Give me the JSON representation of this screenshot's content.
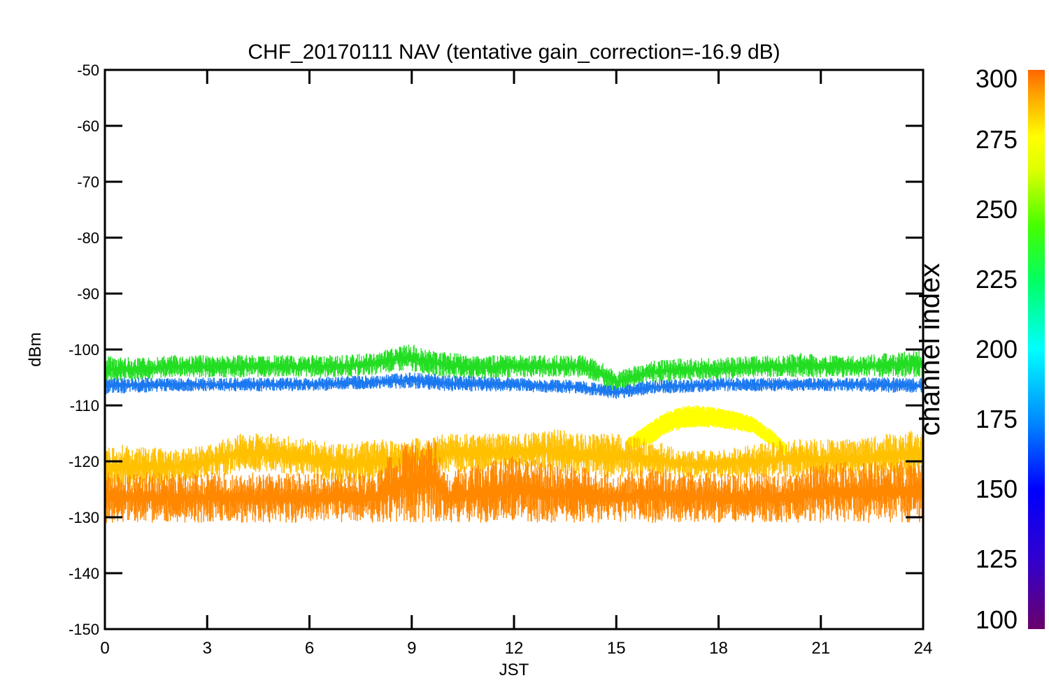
{
  "chart_data": {
    "type": "line",
    "title": "CHF_20170111 NAV (tentative gain_correction=-16.9 dB)",
    "xlabel": "JST",
    "ylabel": "dBm",
    "xlim": [
      0,
      24
    ],
    "ylim": [
      -150,
      -50
    ],
    "xticks": [
      "0",
      "3",
      "6",
      "9",
      "12",
      "15",
      "18",
      "21",
      "24"
    ],
    "yticks": [
      "-50",
      "-60",
      "-70",
      "-80",
      "-90",
      "-100",
      "-110",
      "-120",
      "-130",
      "-140",
      "-150"
    ],
    "grid": false,
    "colorbar": {
      "label": "channel index",
      "range": [
        100,
        300
      ],
      "ticks": [
        "300",
        "275",
        "250",
        "225",
        "200",
        "175",
        "150",
        "125",
        "100"
      ]
    },
    "series": [
      {
        "channel": 230,
        "color": "#22dd22",
        "x": [
          0,
          1,
          2,
          3,
          4,
          5,
          6,
          7,
          8,
          8.5,
          9,
          9.5,
          10,
          11,
          12,
          13,
          14,
          14.5,
          15,
          16,
          17,
          18,
          19,
          20,
          20.5,
          21,
          22,
          23,
          24
        ],
        "y_low": [
          -106,
          -105.5,
          -105,
          -105,
          -105,
          -105,
          -105,
          -105,
          -104.5,
          -104,
          -104,
          -104.5,
          -105,
          -105.5,
          -105,
          -105,
          -105,
          -106,
          -108,
          -106,
          -105.5,
          -105.5,
          -105,
          -105,
          -105,
          -105,
          -105,
          -105,
          -105
        ],
        "y_high": [
          -101,
          -101.5,
          -101,
          -101,
          -101,
          -101,
          -101,
          -101,
          -100.5,
          -99.5,
          -99,
          -100,
          -100.5,
          -101,
          -101,
          -101,
          -101,
          -102,
          -104,
          -102,
          -101.5,
          -101.5,
          -101,
          -101,
          -100.5,
          -101,
          -101,
          -100.5,
          -100
        ]
      },
      {
        "channel": 155,
        "color": "#1a78f0",
        "x": [
          0,
          2,
          4,
          6,
          8,
          9,
          10,
          12,
          14,
          15,
          16,
          18,
          20,
          22,
          24
        ],
        "y_low": [
          -108,
          -107.5,
          -107.5,
          -107.5,
          -107,
          -107,
          -107.5,
          -107.5,
          -108,
          -109,
          -108,
          -107.5,
          -107.5,
          -107.5,
          -108
        ],
        "y_high": [
          -105,
          -105,
          -105,
          -105,
          -104.5,
          -104,
          -104.5,
          -105,
          -105.5,
          -106.5,
          -105.5,
          -105,
          -105,
          -105,
          -105
        ]
      },
      {
        "channel": 270,
        "color": "#ffff00",
        "x": [
          15.3,
          16,
          16.5,
          17,
          17.5,
          18,
          18.5,
          19,
          19.5,
          20
        ],
        "y_low": [
          -118,
          -117,
          -115,
          -114,
          -114,
          -114,
          -114.5,
          -115,
          -117,
          -119
        ],
        "y_high": [
          -116,
          -113,
          -111,
          -110,
          -110,
          -110.5,
          -111,
          -112,
          -114,
          -117
        ]
      },
      {
        "channel": 290,
        "color": "#ffc000",
        "x": [
          0,
          1,
          2,
          3,
          4,
          5,
          6,
          7,
          8,
          9,
          10,
          11,
          12,
          13,
          14,
          15,
          16,
          17,
          18,
          19,
          20,
          21,
          22,
          23,
          24
        ],
        "y_low": [
          -125,
          -125,
          -124,
          -123,
          -122,
          -122,
          -123,
          -124,
          -124,
          -123,
          -122,
          -122,
          -122,
          -122,
          -123,
          -123,
          -123,
          -123,
          -123,
          -123,
          -123,
          -123,
          -123,
          -123,
          -123
        ],
        "y_high": [
          -117,
          -117,
          -118,
          -117,
          -115,
          -115,
          -116,
          -117,
          -116,
          -116,
          -115,
          -115,
          -115,
          -114,
          -115,
          -115,
          -116,
          -118,
          -118,
          -117,
          -116,
          -116,
          -116,
          -115,
          -114
        ]
      },
      {
        "channel": 300,
        "color": "#ff8800",
        "x": [
          0,
          2,
          4,
          6,
          8,
          8.3,
          9,
          9.7,
          10,
          11,
          12,
          13,
          14,
          15,
          16,
          17,
          18,
          19,
          20,
          21,
          22,
          23,
          24
        ],
        "y_low": [
          -131,
          -131,
          -131,
          -131,
          -131,
          -131,
          -131,
          -131,
          -131,
          -131,
          -131,
          -131,
          -131,
          -131,
          -131,
          -131,
          -131,
          -131,
          -131,
          -131,
          -131,
          -131,
          -131
        ],
        "y_high": [
          -122,
          -122,
          -122,
          -122,
          -122,
          -119,
          -116,
          -116,
          -122,
          -120,
          -119,
          -120,
          -121,
          -122,
          -121,
          -122,
          -122,
          -122,
          -122,
          -120,
          -120,
          -120,
          -120
        ]
      }
    ]
  }
}
